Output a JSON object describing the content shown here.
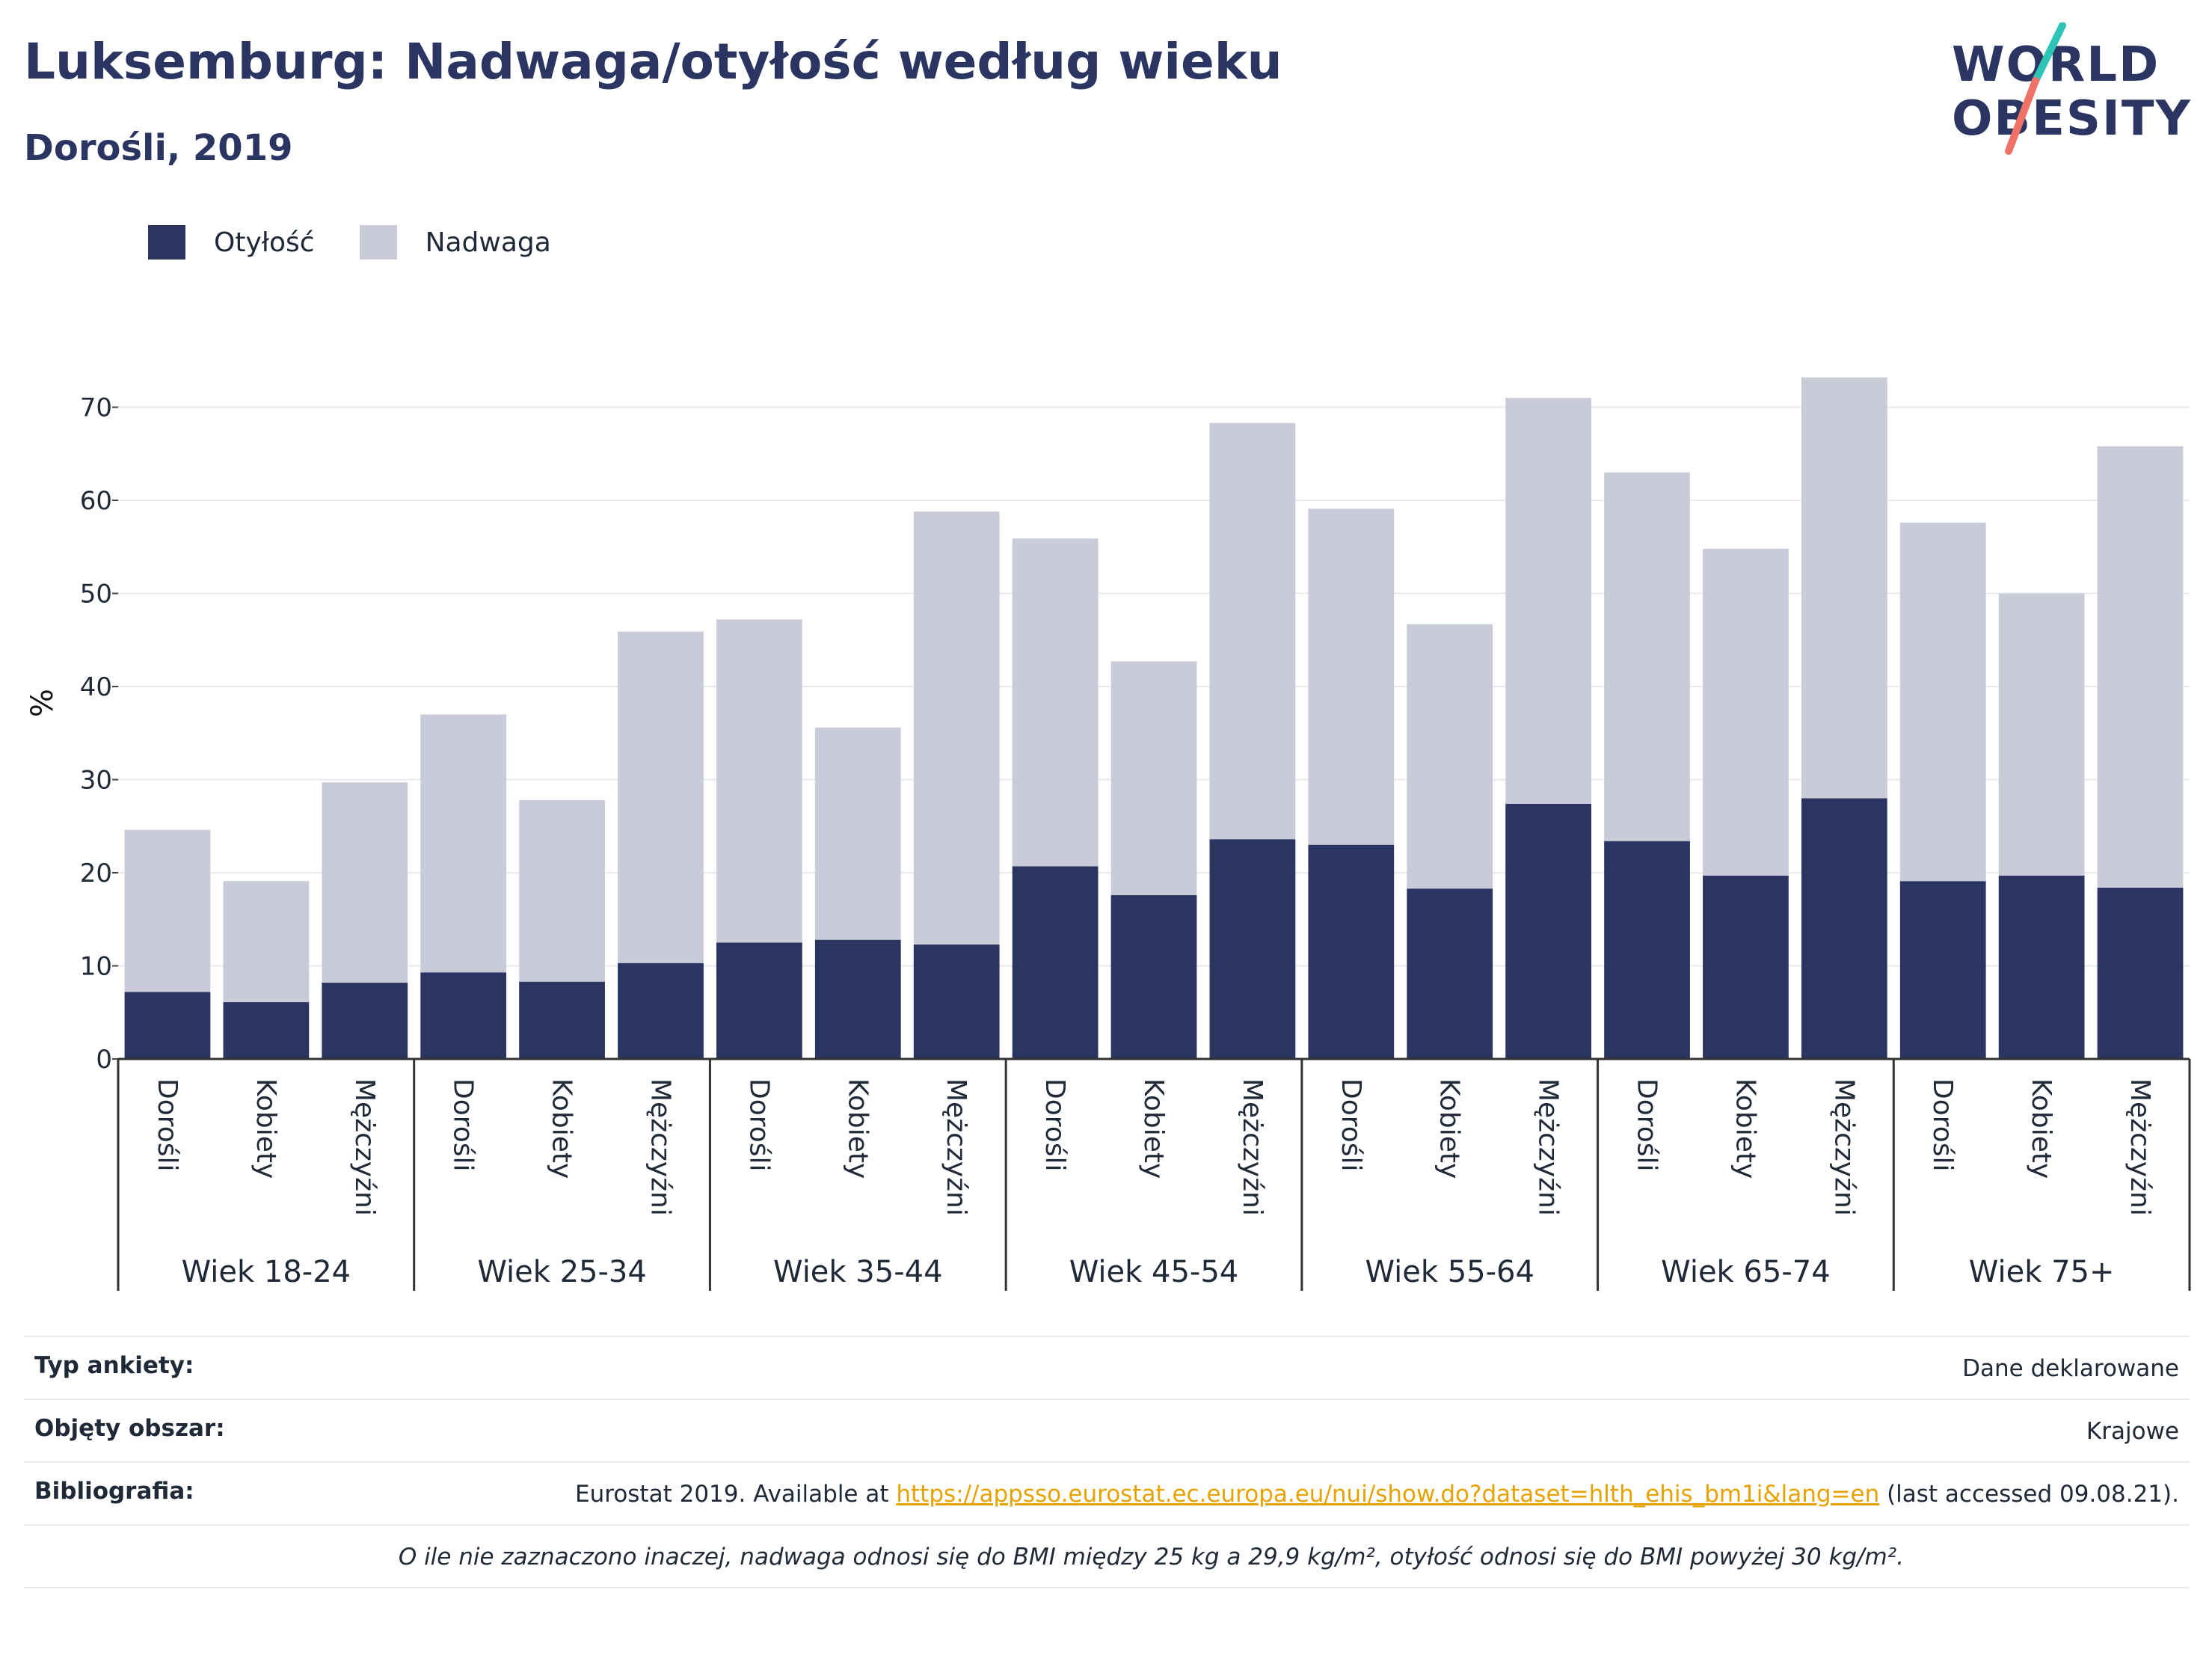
{
  "header": {
    "title": "Luksemburg: Nadwaga/otyłość według wieku",
    "subtitle": "Dorośli, 2019"
  },
  "logo": {
    "line1": "WORLD",
    "line2": "OBESITY",
    "accent_colors": [
      "#2ec4b6",
      "#f07167"
    ]
  },
  "legend": {
    "items": [
      {
        "label": "Otyłość",
        "color": "#2a3661"
      },
      {
        "label": "Nadwaga",
        "color": "#c9ccd8"
      }
    ]
  },
  "chart_data": {
    "type": "bar",
    "stacked": true,
    "ylabel": "%",
    "ylim": [
      0,
      75
    ],
    "yticks": [
      0,
      10,
      20,
      30,
      40,
      50,
      60,
      70
    ],
    "grid": true,
    "legend_position": "top-left",
    "categories": [
      "Dorośli",
      "Kobiety",
      "Mężczyźni",
      "Dorośli",
      "Kobiety",
      "Mężczyźni",
      "Dorośli",
      "Kobiety",
      "Mężczyźni",
      "Dorośli",
      "Kobiety",
      "Mężczyźni",
      "Dorośli",
      "Kobiety",
      "Mężczyźni",
      "Dorośli",
      "Kobiety",
      "Mężczyźni",
      "Dorośli",
      "Kobiety",
      "Mężczyźni"
    ],
    "groups": [
      "Wiek 18-24",
      "Wiek 25-34",
      "Wiek 35-44",
      "Wiek 45-54",
      "Wiek 55-64",
      "Wiek 65-74",
      "Wiek 75+"
    ],
    "series": [
      {
        "name": "Otyłość",
        "color": "#2a3661",
        "values": [
          7.2,
          6.1,
          8.2,
          9.3,
          8.3,
          10.3,
          12.5,
          12.8,
          12.3,
          20.7,
          17.6,
          23.6,
          23.0,
          18.3,
          27.4,
          23.4,
          19.7,
          28.0,
          19.1,
          19.7,
          18.4
        ]
      },
      {
        "name": "Nadwaga",
        "color": "#c9ccd8",
        "values": [
          17.4,
          13.0,
          21.5,
          27.7,
          19.5,
          35.6,
          34.7,
          22.8,
          46.5,
          35.2,
          25.1,
          44.7,
          36.1,
          28.4,
          43.6,
          39.6,
          35.1,
          45.2,
          38.5,
          30.3,
          47.4
        ]
      }
    ]
  },
  "info": {
    "survey_label": "Typ ankiety:",
    "survey_value": "Dane deklarowane",
    "area_label": "Objęty obszar:",
    "area_value": "Krajowe",
    "bib_label": "Bibliografia:",
    "bib_prefix": "Eurostat 2019. Available at ",
    "bib_link": "https://appsso.eurostat.ec.europa.eu/nui/show.do?dataset=hlth_ehis_bm1i&lang=en",
    "bib_suffix": " (last accessed 09.08.21).",
    "note": "O ile nie zaznaczono inaczej, nadwaga odnosi się do BMI między 25 kg a 29,9 kg/m², otyłość odnosi się do BMI powyżej 30 kg/m²."
  }
}
